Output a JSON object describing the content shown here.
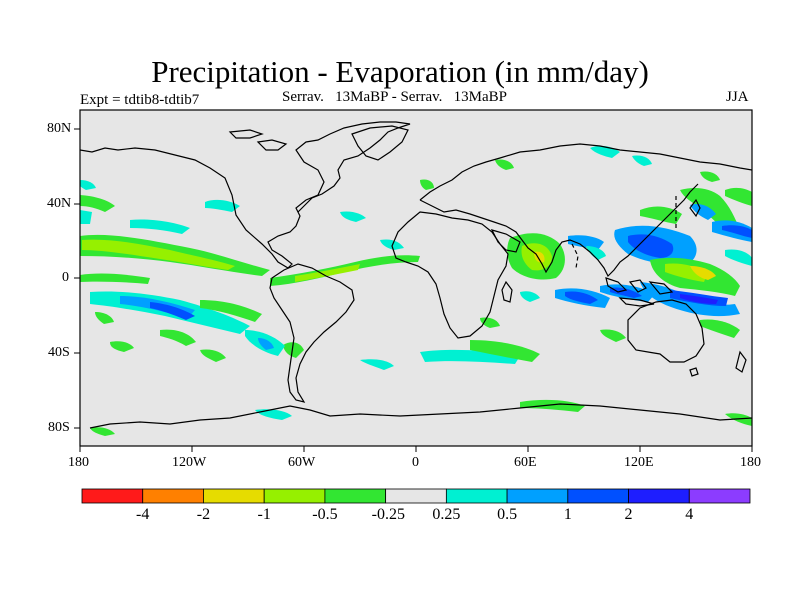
{
  "title": "Precipitation - Evaporation (in mm/day)",
  "expt_label": "Expt = tdtib8-tdtib7",
  "subtitle": "Serrav.   13MaBP - Serrav.   13MaBP",
  "season": "JJA",
  "lat_labels": [
    "80N",
    "40N",
    "0",
    "40S",
    "80S"
  ],
  "lon_labels": [
    "180",
    "120W",
    "60W",
    "0",
    "60E",
    "120E",
    "180"
  ],
  "colorbar": {
    "colors": [
      "#ff1a1a",
      "#ff8000",
      "#e6dc00",
      "#96f000",
      "#32e632",
      "#e6e6e6",
      "#00f0d2",
      "#00a0ff",
      "#0050ff",
      "#1e1eff",
      "#8c3cff"
    ],
    "labels": [
      "-4",
      "-2",
      "-1",
      "-0.5",
      "-0.25",
      "0.25",
      "0.5",
      "1",
      "2",
      "4"
    ]
  },
  "colors": {
    "ocean_neutral": "#e6e6e6",
    "coastline": "#000000"
  }
}
